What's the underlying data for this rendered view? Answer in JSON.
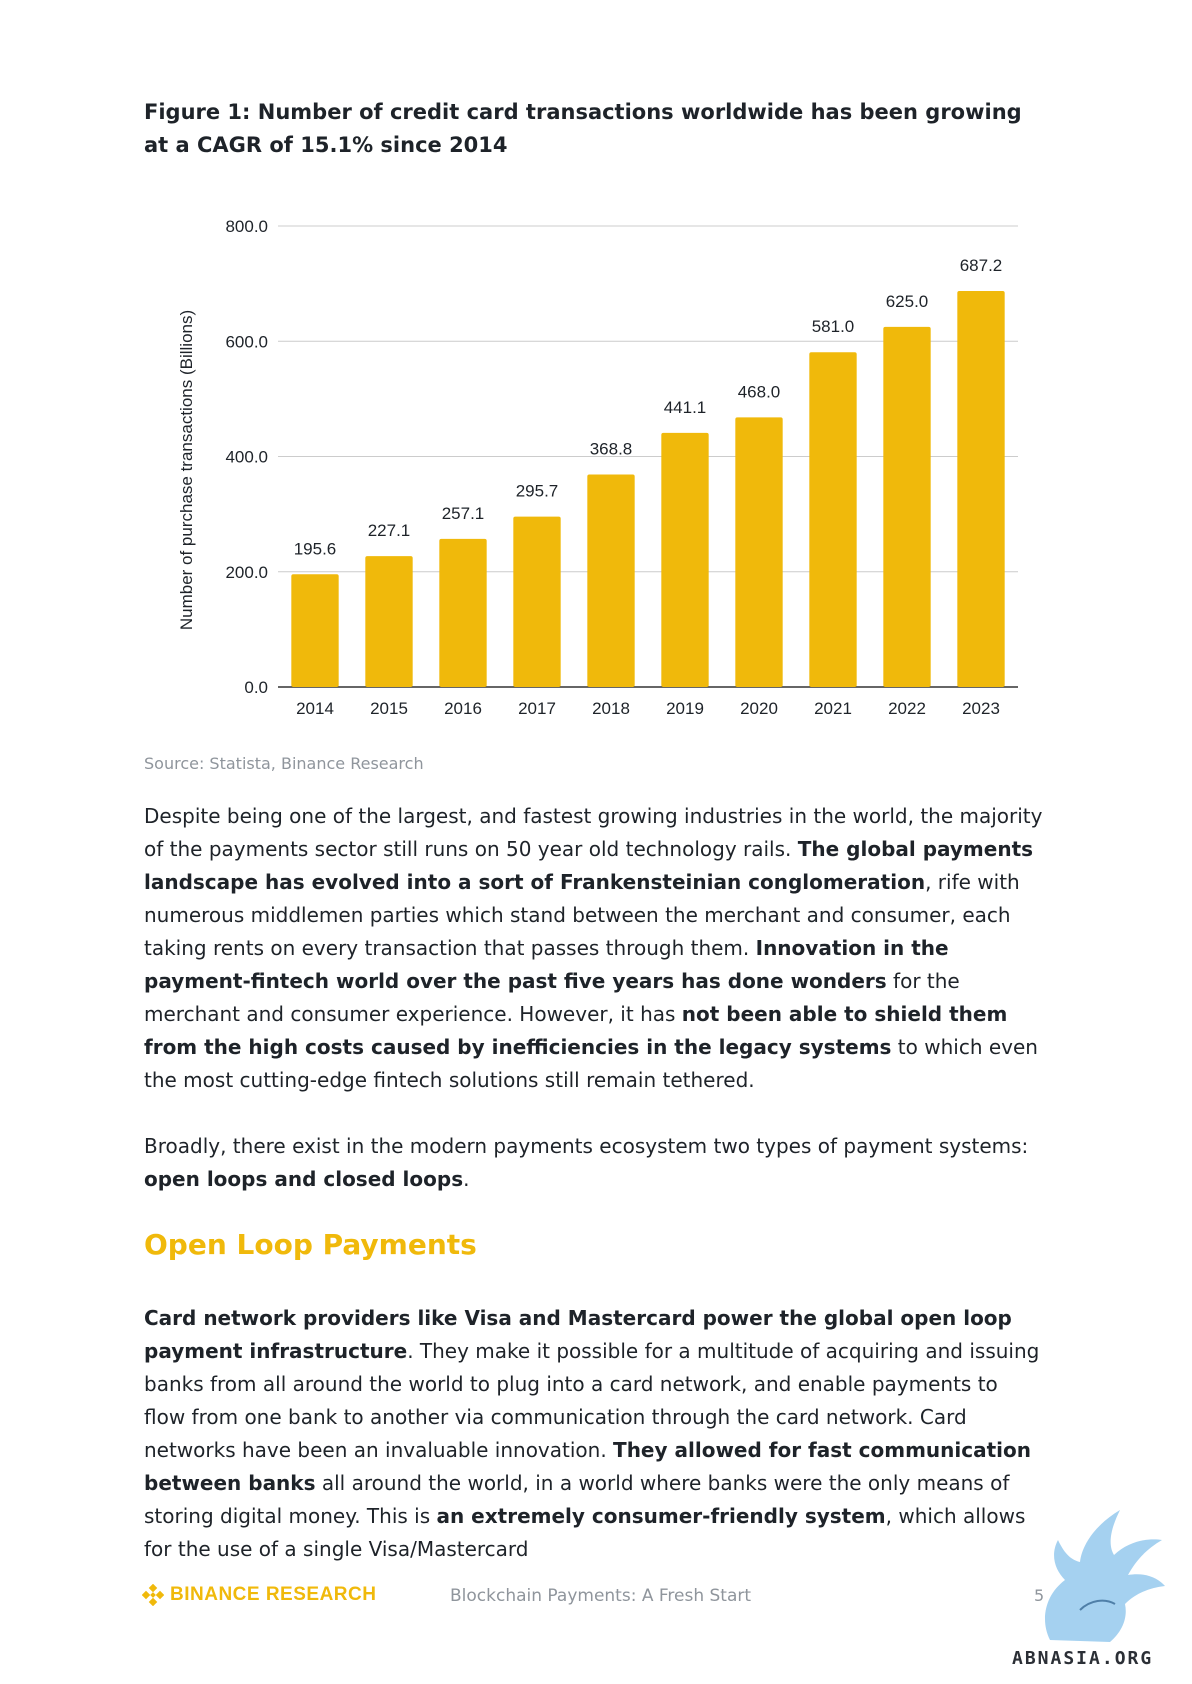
{
  "figure": {
    "title": "Figure 1: Number of credit card transactions worldwide has been growing at a CAGR of 15.1% since 2014",
    "source": "Source: Statista, Binance Research"
  },
  "chart_data": {
    "type": "bar",
    "categories": [
      "2014",
      "2015",
      "2016",
      "2017",
      "2018",
      "2019",
      "2020",
      "2021",
      "2022",
      "2023"
    ],
    "values": [
      195.6,
      227.1,
      257.1,
      295.7,
      368.8,
      441.1,
      468.0,
      581.0,
      625.0,
      687.2
    ],
    "value_labels": [
      "195.6",
      "227.1",
      "257.1",
      "295.7",
      "368.8",
      "441.1",
      "468.0",
      "581.0",
      "625.0",
      "687.2"
    ],
    "yticks": [
      "0.0",
      "200.0",
      "400.0",
      "600.0",
      "800.0"
    ],
    "ytick_values": [
      0,
      200,
      400,
      600,
      800
    ],
    "ylabel": "Number of purchase transactions (Billions)",
    "xlabel": "",
    "ylim": [
      0,
      800
    ],
    "grid": true,
    "bar_color": "#f0b90b"
  },
  "body": {
    "p1": {
      "s1": "Despite being one of the largest, and fastest growing industries in the world, the majority of the payments sector still runs on 50 year old technology rails. ",
      "b1": "The global payments landscape has evolved into a sort of Frankensteinian conglomeration",
      "s2": ", rife with numerous middlemen parties which stand between the merchant and consumer, each taking rents on every transaction that passes through them. ",
      "b2": "Innovation in the payment-fintech world over the past five years has done wonders",
      "s3": " for the merchant and consumer experience. However, it has ",
      "b3": "not been able to shield them from the high costs caused by inefficiencies in the legacy systems",
      "s4": " to which even the most cutting-edge fintech solutions still remain tethered."
    },
    "p2": {
      "s1": "Broadly, there exist in the modern payments ecosystem two types of payment systems: ",
      "b1": "open loops and closed loops",
      "s2": "."
    },
    "heading": "Open Loop Payments",
    "p3": {
      "b1": "Card network providers like Visa and Mastercard power the global open loop payment infrastructure",
      "s1": ". They make it possible for a multitude of acquiring and issuing banks from all around the world to plug into a card network, and enable payments to flow from one bank to another via communication through the card network. Card networks have been an invaluable innovation. ",
      "b2": "They allowed for fast communication between banks",
      "s2": " all around the world, in a world where banks were the only means of storing digital money. This is ",
      "b3": "an extremely consumer-friendly system",
      "s3": ", which allows for the use of a single Visa/Mastercard"
    }
  },
  "footer": {
    "brand": "BINANCE RESEARCH",
    "doc_title": "Blockchain Payments: A Fresh Start",
    "page": "5",
    "brand_color": "#f0b90b"
  },
  "watermark": {
    "text": "ABNASIA.ORG",
    "icon": "griffin-logo"
  }
}
